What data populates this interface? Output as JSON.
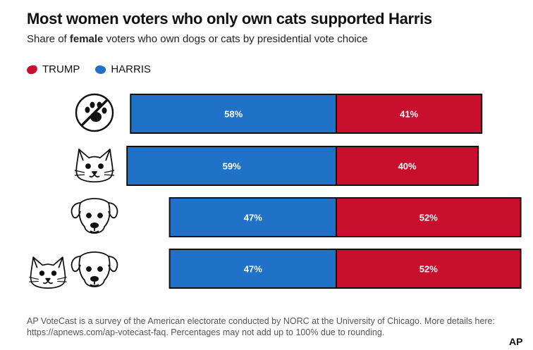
{
  "header": {
    "title": "Most women voters who only own cats supported Harris",
    "subtitle_prefix": "Share of ",
    "subtitle_bold": "female",
    "subtitle_suffix": " voters who own dogs or cats by presidential vote choice"
  },
  "legend": {
    "items": [
      {
        "label": "TRUMP",
        "color": "#c8102e"
      },
      {
        "label": "HARRIS",
        "color": "#1f72c8"
      }
    ]
  },
  "colors": {
    "trump": "#c8102e",
    "harris": "#1f72c8",
    "outline": "#111111"
  },
  "chart_data": {
    "type": "bar",
    "orientation": "horizontal",
    "stacked": true,
    "title": "Most women voters who only own cats supported Harris",
    "subtitle": "Share of female voters who own dogs or cats by presidential vote choice",
    "categories": [
      "no-pets",
      "cat-only",
      "dog-only",
      "cat-and-dog"
    ],
    "category_icons": [
      "no-pets-icon",
      "cat-icon",
      "dog-icon",
      "cat-and-dog-icon"
    ],
    "series": [
      {
        "name": "HARRIS",
        "color": "#1f72c8",
        "values": [
          58,
          59,
          47,
          47
        ],
        "labels": [
          "58%",
          "59%",
          "47%",
          "47%"
        ]
      },
      {
        "name": "TRUMP",
        "color": "#c8102e",
        "values": [
          41,
          40,
          52,
          52
        ],
        "labels": [
          "41%",
          "40%",
          "52%",
          "52%"
        ]
      }
    ],
    "xlim": [
      0,
      100
    ],
    "legend_position": "top-left"
  },
  "footnote": "AP VoteCast is a survey of the American electorate conducted by NORC at the University of Chicago. More details here: https://apnews.com/ap-votecast-faq. Percentages may not add up to 100% due to rounding.",
  "logo": "AP"
}
